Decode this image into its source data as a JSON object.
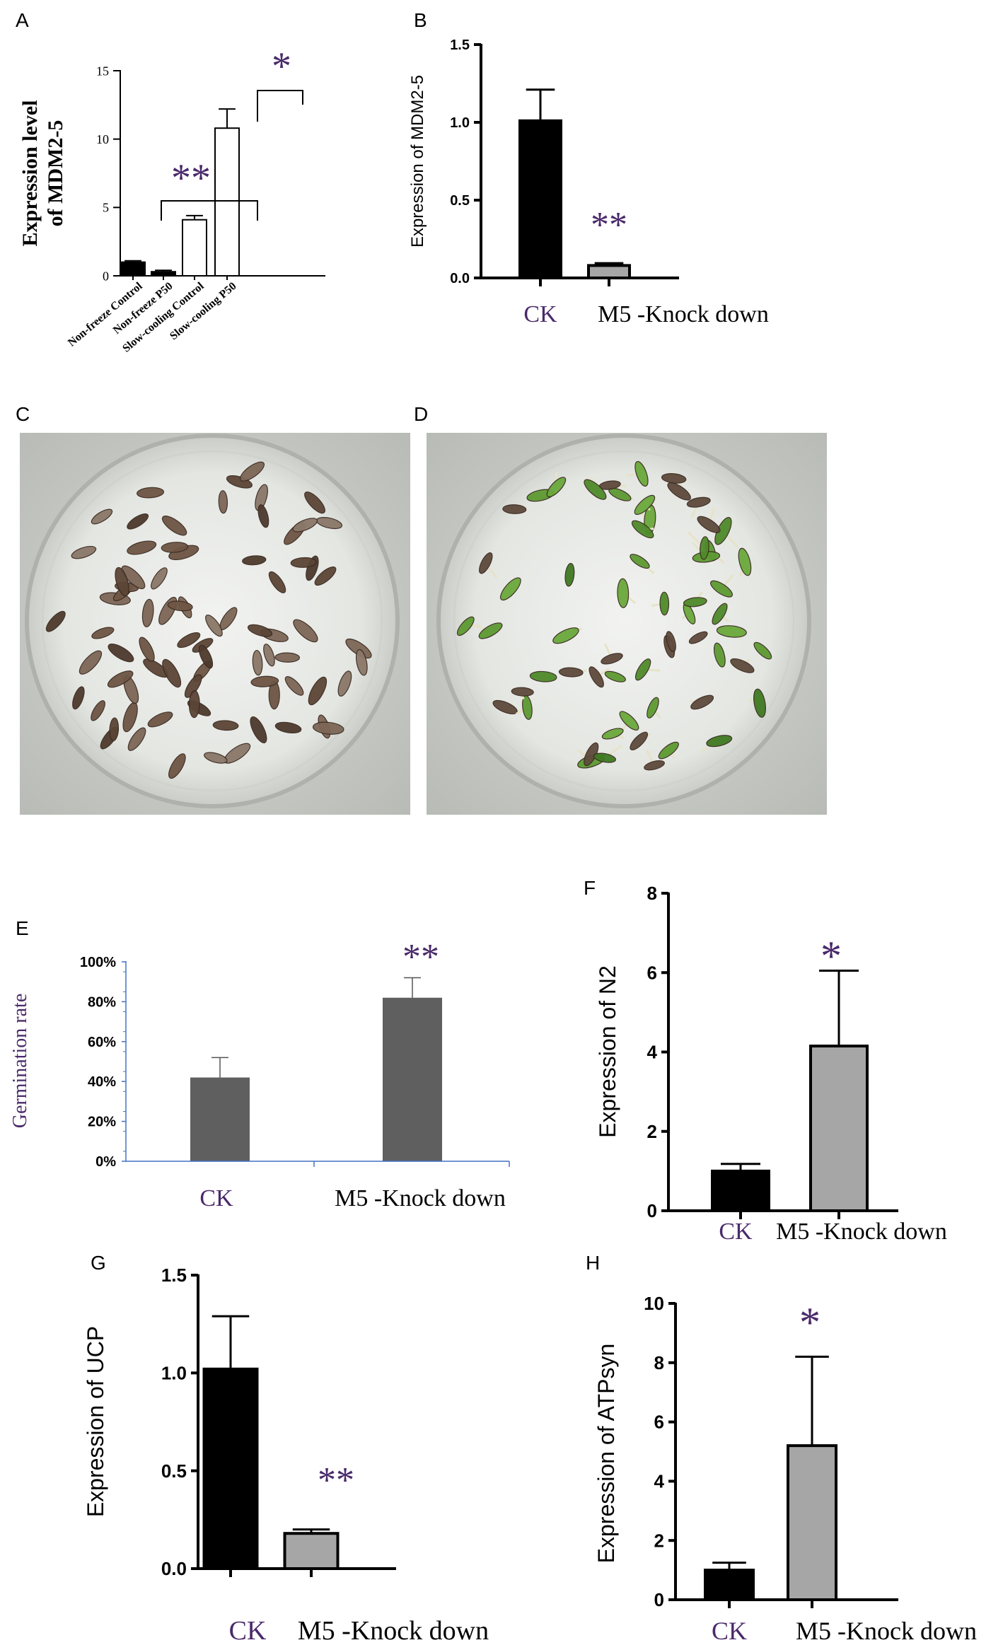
{
  "colors": {
    "purple": "#4a2a6a",
    "bar_black": "#000000",
    "bar_gray": "#a6a6a6",
    "bar_dark_gray": "#5f5f5f",
    "axis_blue": "#4472c4"
  },
  "panels": {
    "A": {
      "letter": "A",
      "sig_left": "**",
      "sig_right": "*"
    },
    "B": {
      "letter": "B",
      "sig": "**"
    },
    "C": {
      "letter": "C"
    },
    "D": {
      "letter": "D"
    },
    "E": {
      "letter": "E",
      "sig": "**"
    },
    "F": {
      "letter": "F",
      "sig": "*"
    },
    "G": {
      "letter": "G",
      "sig": "**"
    },
    "H": {
      "letter": "H",
      "sig": "*"
    }
  },
  "chart_data": [
    {
      "panel": "A",
      "type": "bar",
      "ylabel": "Expression level of MDM2-5",
      "ylabel_lines": [
        "Expression level",
        "of MDM2-5"
      ],
      "categories": [
        "Non-freeze Control",
        "Non-freeze P50",
        "Slow-cooling Control",
        "Slow-cooling P50"
      ],
      "values": [
        1.0,
        0.3,
        4.1,
        10.8
      ],
      "errors": [
        0.1,
        0.1,
        0.3,
        1.4
      ],
      "fills": [
        "#000000",
        "#000000",
        "#ffffff",
        "#ffffff"
      ],
      "ylim": [
        0,
        15
      ],
      "yticks": [
        "0",
        "5",
        "10",
        "15"
      ],
      "ytick_values": [
        0,
        5,
        10,
        15
      ]
    },
    {
      "panel": "B",
      "type": "bar",
      "ylabel": "Expression of MDM2-5",
      "categories": [
        "CK",
        "M5 -Knock down"
      ],
      "values": [
        1.01,
        0.08
      ],
      "errors": [
        0.2,
        0.015
      ],
      "fills": [
        "#000000",
        "#a6a6a6"
      ],
      "ylim": [
        0,
        1.5
      ],
      "yticks": [
        "0.0",
        "0.5",
        "1.0",
        "1.5"
      ],
      "ytick_values": [
        0,
        0.5,
        1.0,
        1.5
      ]
    },
    {
      "panel": "E",
      "type": "bar",
      "ylabel": "Germination rate",
      "categories": [
        "CK",
        "M5 -Knock down"
      ],
      "values": [
        0.42,
        0.82
      ],
      "errors": [
        0.1,
        0.1
      ],
      "fills": [
        "#5f5f5f",
        "#5f5f5f"
      ],
      "ylim": [
        0,
        1.0
      ],
      "yticks": [
        "0%",
        "20%",
        "40%",
        "60%",
        "80%",
        "100%"
      ],
      "ytick_values": [
        0,
        0.2,
        0.4,
        0.6,
        0.8,
        1.0
      ]
    },
    {
      "panel": "F",
      "type": "bar",
      "ylabel": "Expression of N2",
      "categories": [
        "CK",
        "M5 -Knock down"
      ],
      "values": [
        1.0,
        4.15
      ],
      "errors": [
        0.18,
        1.9
      ],
      "fills": [
        "#000000",
        "#a6a6a6"
      ],
      "ylim": [
        0,
        8
      ],
      "yticks": [
        "0",
        "2",
        "4",
        "6",
        "8"
      ],
      "ytick_values": [
        0,
        2,
        4,
        6,
        8
      ]
    },
    {
      "panel": "G",
      "type": "bar",
      "ylabel": "Expression of UCP",
      "categories": [
        "CK",
        "M5 -Knock down"
      ],
      "values": [
        1.02,
        0.18
      ],
      "errors": [
        0.27,
        0.02
      ],
      "fills": [
        "#000000",
        "#a6a6a6"
      ],
      "ylim": [
        0,
        1.5
      ],
      "yticks": [
        "0.0",
        "0.5",
        "1.0",
        "1.5"
      ],
      "ytick_values": [
        0,
        0.5,
        1.0,
        1.5
      ]
    },
    {
      "panel": "H",
      "type": "bar",
      "ylabel": "Expression of ATPsyn",
      "categories": [
        "CK",
        "M5 -Knock down"
      ],
      "values": [
        1.0,
        5.2
      ],
      "errors": [
        0.25,
        3.0
      ],
      "fills": [
        "#000000",
        "#a6a6a6"
      ],
      "ylim": [
        0,
        10
      ],
      "yticks": [
        "0",
        "2",
        "4",
        "6",
        "8",
        "10"
      ],
      "ytick_values": [
        0,
        2,
        4,
        6,
        8,
        10
      ]
    }
  ]
}
